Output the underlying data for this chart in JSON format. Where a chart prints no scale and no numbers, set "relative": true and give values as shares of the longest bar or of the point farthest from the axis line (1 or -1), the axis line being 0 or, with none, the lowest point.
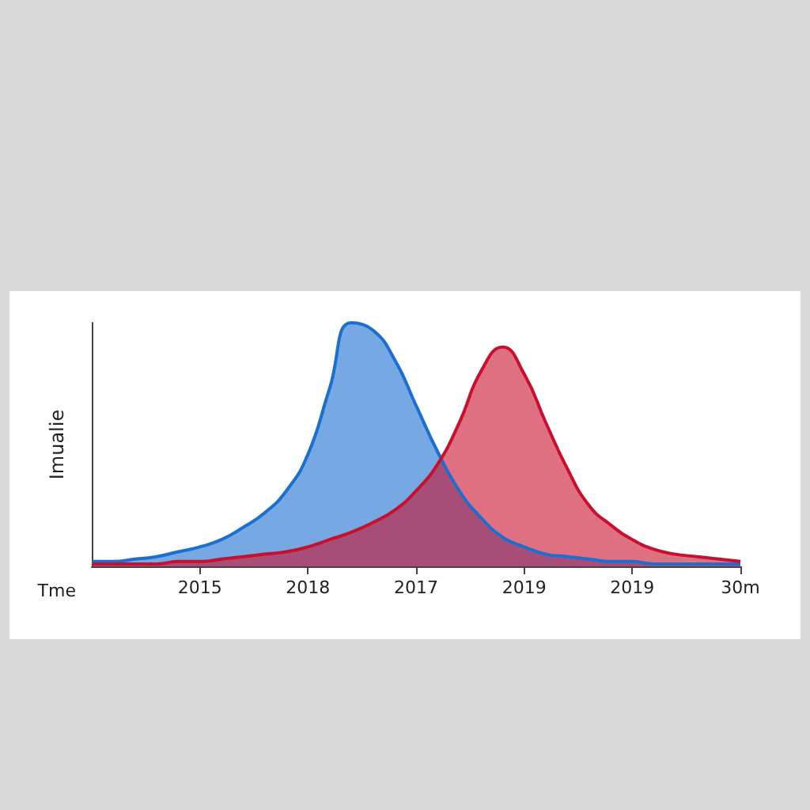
{
  "chart_data": {
    "type": "area",
    "xlabel": "Tme",
    "ylabel": "Imualie",
    "relative": true,
    "categories": [
      null,
      null,
      null,
      null,
      null,
      "2015",
      null,
      null,
      null,
      null,
      "2018",
      null,
      null,
      null,
      null,
      "2017",
      null,
      null,
      null,
      null,
      "2019",
      null,
      null,
      null,
      null,
      "2019",
      null,
      null,
      null,
      null,
      "30m"
    ],
    "grid": false,
    "marker": "none",
    "line_style": "solid",
    "series": [
      {
        "color": "#1a6fd0",
        "values": [
          0.02,
          0.02,
          0.03,
          0.04,
          0.06,
          0.08,
          0.11,
          0.16,
          0.22,
          0.31,
          0.46,
          0.73,
          1,
          0.97,
          0.85,
          0.66,
          0.47,
          0.31,
          0.2,
          0.12,
          0.08,
          0.05,
          0.04,
          0.03,
          0.02,
          0.02,
          0.01,
          0.01,
          0.01,
          0.01,
          0.01
        ]
      },
      {
        "color": "#c8102e",
        "values": [
          0.01,
          0.01,
          0.01,
          0.01,
          0.02,
          0.02,
          0.03,
          0.04,
          0.05,
          0.06,
          0.08,
          0.11,
          0.14,
          0.18,
          0.23,
          0.31,
          0.42,
          0.59,
          0.8,
          0.9,
          0.79,
          0.59,
          0.4,
          0.25,
          0.17,
          0.11,
          0.07,
          0.05,
          0.04,
          0.03,
          0.02
        ]
      }
    ]
  }
}
